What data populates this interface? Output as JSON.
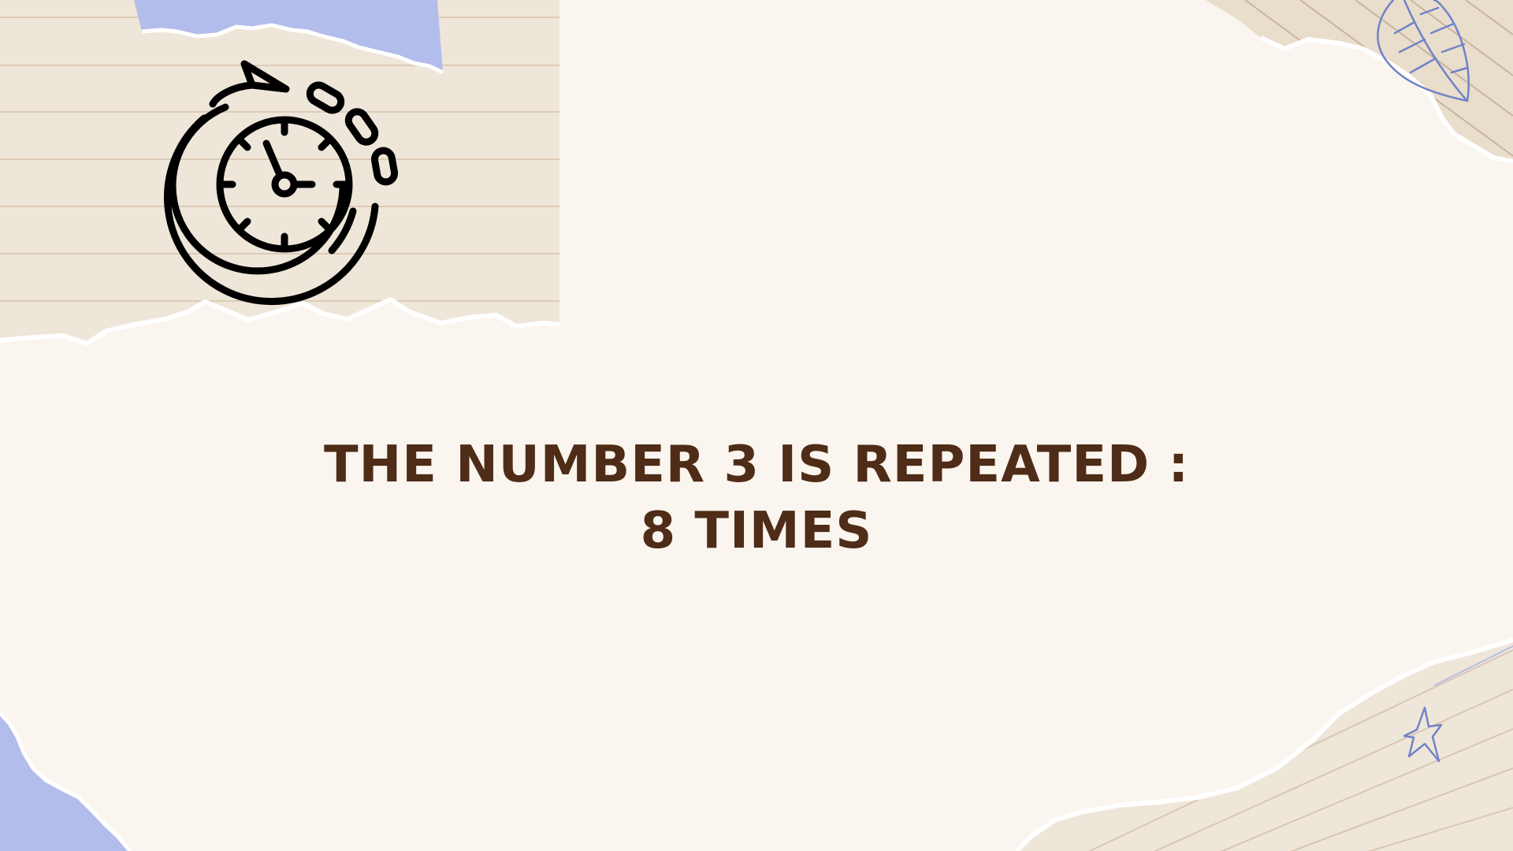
{
  "slide": {
    "headline": {
      "line1": "THE NUMBER 3 IS REPEATED :",
      "line2": "8 TIMES"
    }
  },
  "icons": {
    "main": "timer-icon",
    "top_right": "leaf-doodle-icon",
    "bottom_right": "star-doodle-icon"
  },
  "colors": {
    "background": "#faf5ee",
    "paper": "#efe6da",
    "ruled_line": "#dccbb6",
    "torn_edge": "#ffffff",
    "accent_blue": "#b3bdeb",
    "doodle_blue": "#6f83c9",
    "heading_text": "#4e2c17",
    "icon_stroke": "#000000"
  }
}
